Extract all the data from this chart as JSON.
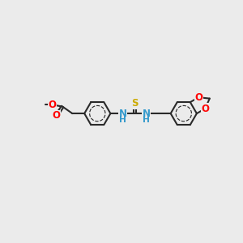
{
  "bg_color": "#ebebeb",
  "bond_color": "#2a2a2a",
  "bond_width": 1.5,
  "atom_colors": {
    "O": "#ff0000",
    "N": "#3399cc",
    "S": "#ccaa00",
    "C": "#2a2a2a",
    "H": "#2a2a2a"
  },
  "font_size": 8.5,
  "fig_size": [
    3.0,
    3.0
  ],
  "dpi": 100,
  "xlim": [
    0,
    12
  ],
  "ylim": [
    0,
    10
  ]
}
